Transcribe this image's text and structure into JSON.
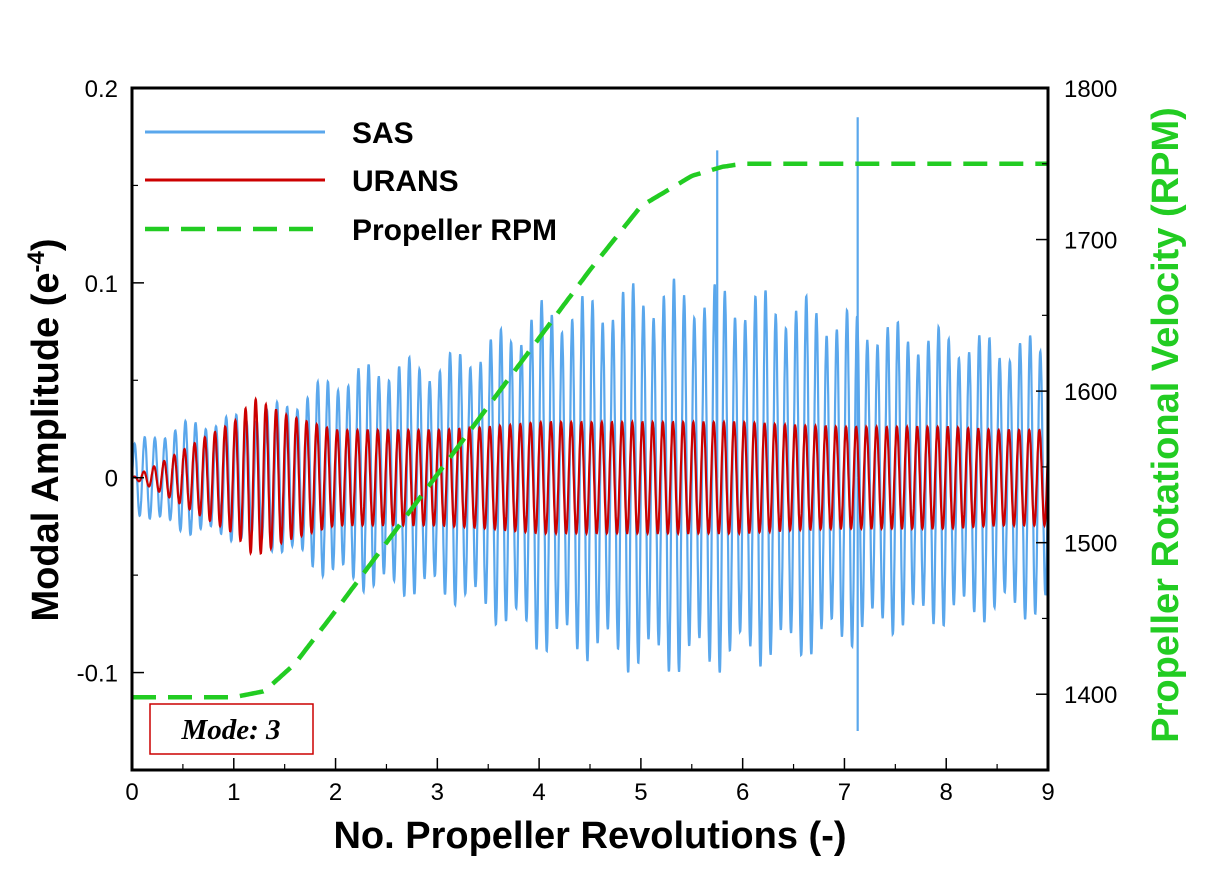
{
  "chart_data": {
    "type": "line",
    "xlabel": "No. Propeller Revolutions (-)",
    "ylabel": "Modal Amplitude (e",
    "ylabel_sup": "-4",
    "ylabel_close": ")",
    "y2label": "Propeller Rotational Velocity (RPM)",
    "xlim": [
      0,
      9
    ],
    "ylim": [
      -0.15,
      0.2
    ],
    "y2lim": [
      1350,
      1800
    ],
    "xticks": [
      "0",
      "1",
      "2",
      "3",
      "4",
      "5",
      "6",
      "7",
      "8",
      "9"
    ],
    "yticks": [
      "0.2",
      "0.1",
      "0",
      "-0.1"
    ],
    "y2ticks": [
      "1800",
      "1700",
      "1600",
      "1500",
      "1400"
    ],
    "annotation": "Mode: 3",
    "legend": [
      {
        "name": "SAS",
        "color": "#5aa7ec",
        "style": "solid"
      },
      {
        "name": "URANS",
        "color": "#cc0000",
        "style": "solid"
      },
      {
        "name": "Propeller RPM",
        "color": "#22cc22",
        "style": "dashed"
      }
    ],
    "series": [
      {
        "name": "SAS",
        "axis": "left",
        "oscillation_frequency_per_rev": 10,
        "envelope": {
          "x": [
            0,
            0.5,
            1.0,
            1.5,
            2.0,
            2.5,
            3.0,
            3.5,
            4.0,
            4.5,
            5.0,
            5.5,
            6.0,
            6.5,
            7.0,
            7.5,
            8.0,
            8.5,
            9.0
          ],
          "amplitude": [
            0.025,
            0.04,
            0.045,
            0.055,
            0.075,
            0.085,
            0.085,
            0.1,
            0.125,
            0.13,
            0.14,
            0.14,
            0.135,
            0.13,
            0.12,
            0.11,
            0.105,
            0.1,
            0.1
          ]
        },
        "peaks": [
          {
            "x": 7.13,
            "y": 0.185
          },
          {
            "x": 7.13,
            "y": -0.13
          },
          {
            "x": 5.75,
            "y": 0.168
          }
        ]
      },
      {
        "name": "URANS",
        "axis": "left",
        "oscillation_frequency_per_rev": 10,
        "envelope": {
          "x": [
            0,
            0.3,
            0.7,
            1.0,
            1.2,
            1.5,
            2.0,
            2.5,
            3.0,
            3.5,
            4.0,
            4.5,
            5.0,
            5.5,
            6.0,
            6.5,
            7.0,
            7.5,
            8.0,
            8.5,
            9.0
          ],
          "amplitude": [
            0.0,
            0.01,
            0.025,
            0.035,
            0.05,
            0.04,
            0.03,
            0.03,
            0.03,
            0.032,
            0.035,
            0.035,
            0.035,
            0.035,
            0.035,
            0.033,
            0.032,
            0.032,
            0.032,
            0.03,
            0.03
          ]
        }
      },
      {
        "name": "Propeller RPM",
        "axis": "right",
        "x": [
          0,
          0.5,
          1.0,
          1.3,
          1.6,
          2.0,
          2.5,
          3.0,
          3.5,
          4.0,
          4.5,
          5.0,
          5.5,
          5.8,
          6.0,
          7.0,
          8.0,
          9.0
        ],
        "values": [
          1398,
          1398,
          1398,
          1402,
          1420,
          1455,
          1500,
          1545,
          1590,
          1635,
          1680,
          1722,
          1742,
          1748,
          1750,
          1750,
          1750,
          1750
        ]
      }
    ]
  }
}
